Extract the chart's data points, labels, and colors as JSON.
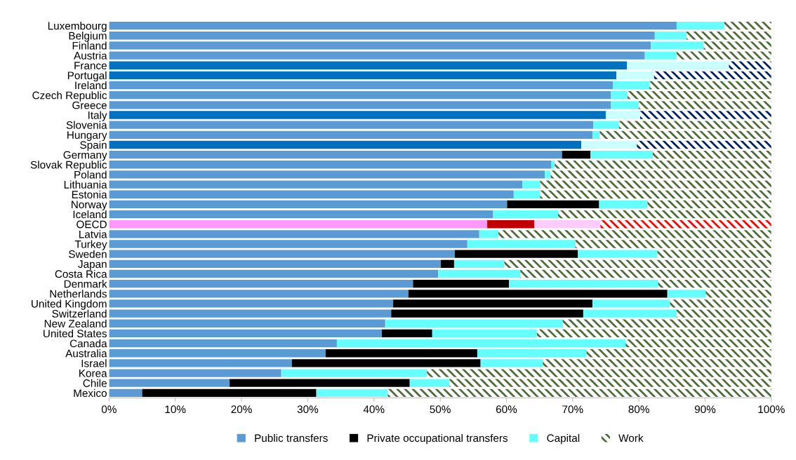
{
  "chart_data": {
    "type": "bar",
    "orientation": "horizontal",
    "stacked": true,
    "legend": "bottom",
    "grid": false,
    "categories": [
      "Luxembourg",
      "Belgium",
      "Finland",
      "Austria",
      "France",
      "Portugal",
      "Ireland",
      "Czech Republic",
      "Greece",
      "Italy",
      "Slovenia",
      "Hungary",
      "Spain",
      "Germany",
      "Slovak Republic",
      "Poland",
      "Lithuania",
      "Estonia",
      "Norway",
      "Iceland",
      "OECD",
      "Latvia",
      "Turkey",
      "Sweden",
      "Japan",
      "Costa Rica",
      "Denmark",
      "Netherlands",
      "United Kingdom",
      "Switzerland",
      "New Zealand",
      "United States",
      "Canada",
      "Australia",
      "Israel",
      "Korea",
      "Chile",
      "Mexico"
    ],
    "xlim": [
      0,
      100
    ],
    "xticks": [
      {
        "value": 0,
        "label": "0%"
      },
      {
        "value": 10,
        "label": "10%"
      },
      {
        "value": 20,
        "label": "20%"
      },
      {
        "value": 30,
        "label": "30%"
      },
      {
        "value": 40,
        "label": "40%"
      },
      {
        "value": 50,
        "label": "50%"
      },
      {
        "value": 60,
        "label": "60%"
      },
      {
        "value": 70,
        "label": "70%"
      },
      {
        "value": 80,
        "label": "80%"
      },
      {
        "value": 90,
        "label": "90%"
      },
      {
        "value": 100,
        "label": "100%"
      }
    ],
    "series": [
      {
        "name": "Public transfers",
        "color": "#5b9bd5",
        "colors": [
          "#5b9bd5",
          "#5b9bd5",
          "#5b9bd5",
          "#5b9bd5",
          "#0070c0",
          "#0070c0",
          "#5b9bd5",
          "#5b9bd5",
          "#5b9bd5",
          "#0070c0",
          "#5b9bd5",
          "#5b9bd5",
          "#0070c0",
          "#5b9bd5",
          "#5b9bd5",
          "#5b9bd5",
          "#5b9bd5",
          "#5b9bd5",
          "#5b9bd5",
          "#5b9bd5",
          "#ff99ff",
          "#5b9bd5",
          "#5b9bd5",
          "#5b9bd5",
          "#5b9bd5",
          "#5b9bd5",
          "#5b9bd5",
          "#5b9bd5",
          "#5b9bd5",
          "#5b9bd5",
          "#5b9bd5",
          "#5b9bd5",
          "#5b9bd5",
          "#5b9bd5",
          "#5b9bd5",
          "#5b9bd5",
          "#5b9bd5",
          "#5b9bd5"
        ],
        "values": [
          85.7,
          82.4,
          81.8,
          80.9,
          78.2,
          76.6,
          76.1,
          75.8,
          75.8,
          75.0,
          73.1,
          73.0,
          71.3,
          68.4,
          66.8,
          65.8,
          62.4,
          61.1,
          60.1,
          58.0,
          57.1,
          55.9,
          54.1,
          52.2,
          50.1,
          49.7,
          45.9,
          45.2,
          42.9,
          42.6,
          41.7,
          41.2,
          34.4,
          32.7,
          27.6,
          26.0,
          18.2,
          5.0
        ]
      },
      {
        "name": "Private occupational transfers",
        "color": "#000000",
        "colors": [
          "#000000",
          "#000000",
          "#000000",
          "#000000",
          "#000000",
          "#000000",
          "#000000",
          "#000000",
          "#000000",
          "#000000",
          "#000000",
          "#000000",
          "#000000",
          "#000000",
          "#000000",
          "#000000",
          "#000000",
          "#000000",
          "#000000",
          "#000000",
          "#c00000",
          "#000000",
          "#000000",
          "#000000",
          "#000000",
          "#000000",
          "#000000",
          "#000000",
          "#000000",
          "#000000",
          "#000000",
          "#000000",
          "#000000",
          "#000000",
          "#000000",
          "#000000",
          "#000000",
          "#000000"
        ],
        "values": [
          0,
          0,
          0,
          0,
          0,
          0,
          0,
          0,
          0,
          0,
          0,
          0,
          0,
          4.3,
          0,
          0,
          0,
          0,
          13.9,
          0,
          7.1,
          0,
          0,
          18.6,
          2.0,
          0,
          14.5,
          39.1,
          30.1,
          29.0,
          0,
          7.6,
          0,
          22.9,
          28.5,
          0,
          27.2,
          26.3
        ]
      },
      {
        "name": "Capital",
        "color": "#66ffff",
        "colors": [
          "#66ffff",
          "#66ffff",
          "#66ffff",
          "#66ffff",
          "#ccffff",
          "#ccffff",
          "#66ffff",
          "#66ffff",
          "#66ffff",
          "#ccffff",
          "#66ffff",
          "#66ffff",
          "#ccffff",
          "#66ffff",
          "#66ffff",
          "#66ffff",
          "#66ffff",
          "#66ffff",
          "#66ffff",
          "#66ffff",
          "#ffccff",
          "#66ffff",
          "#66ffff",
          "#66ffff",
          "#66ffff",
          "#66ffff",
          "#66ffff",
          "#66ffff",
          "#66ffff",
          "#66ffff",
          "#66ffff",
          "#66ffff",
          "#66ffff",
          "#66ffff",
          "#66ffff",
          "#66ffff",
          "#66ffff",
          "#66ffff"
        ],
        "values": [
          7.2,
          4.8,
          8.0,
          4.8,
          15.4,
          5.7,
          5.5,
          2.5,
          4.2,
          5.2,
          3.9,
          1.1,
          8.4,
          9.4,
          0.5,
          0.9,
          2.7,
          4.0,
          7.3,
          9.8,
          10.0,
          2.9,
          16.3,
          12.0,
          7.6,
          12.4,
          22.5,
          5.8,
          11.7,
          14.1,
          26.8,
          15.8,
          43.6,
          16.5,
          9.4,
          22.0,
          6.0,
          10.8
        ]
      },
      {
        "name": "Work",
        "color": "#4e6b3a",
        "colors": [
          "#4e6b3a",
          "#4e6b3a",
          "#4e6b3a",
          "#4e6b3a",
          "#002060",
          "#002060",
          "#4e6b3a",
          "#4e6b3a",
          "#4e6b3a",
          "#002060",
          "#4e6b3a",
          "#4e6b3a",
          "#002060",
          "#4e6b3a",
          "#4e6b3a",
          "#4e6b3a",
          "#4e6b3a",
          "#4e6b3a",
          "#4e6b3a",
          "#4e6b3a",
          "#ff0000",
          "#4e6b3a",
          "#4e6b3a",
          "#4e6b3a",
          "#4e6b3a",
          "#4e6b3a",
          "#4e6b3a",
          "#4e6b3a",
          "#4e6b3a",
          "#4e6b3a",
          "#4e6b3a",
          "#4e6b3a",
          "#4e6b3a",
          "#4e6b3a",
          "#4e6b3a",
          "#4e6b3a",
          "#4e6b3a",
          "#4e6b3a"
        ],
        "values": [
          7.1,
          12.8,
          10.2,
          14.3,
          6.4,
          17.7,
          18.4,
          21.7,
          20.0,
          19.8,
          23.0,
          25.9,
          20.3,
          17.9,
          32.7,
          33.3,
          34.9,
          34.9,
          18.7,
          32.2,
          25.8,
          41.2,
          29.6,
          17.2,
          40.3,
          37.9,
          17.1,
          9.9,
          15.3,
          14.3,
          31.5,
          35.4,
          22.0,
          27.9,
          34.5,
          52.0,
          48.6,
          57.9
        ]
      }
    ]
  }
}
